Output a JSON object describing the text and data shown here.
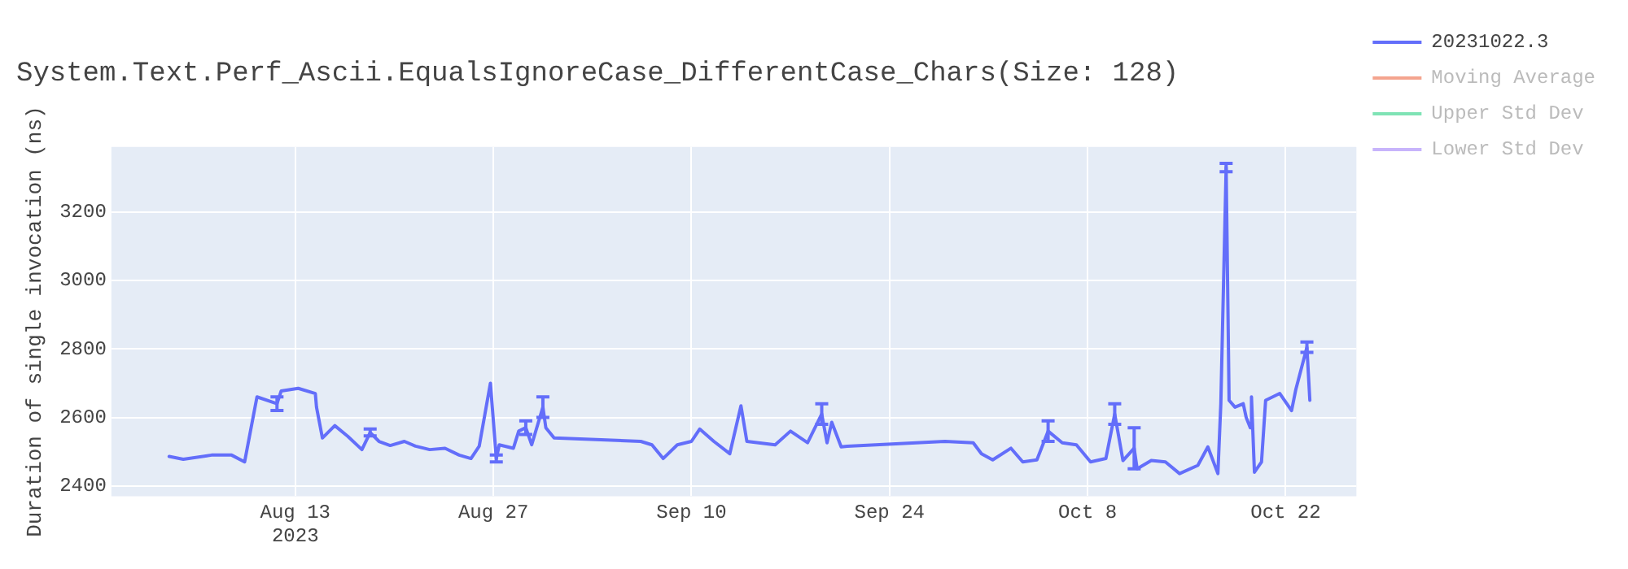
{
  "chart_data": {
    "type": "line",
    "title": "System.Text.Perf_Ascii.EqualsIgnoreCase_DifferentCase_Chars(Size: 128)",
    "ylabel": "Duration of single invocation (ns)",
    "xlim": [
      "2023-07-31",
      "2023-10-27"
    ],
    "xticks": [
      {
        "value": "2023-08-13",
        "label": "Aug 13\n2023"
      },
      {
        "value": "2023-08-27",
        "label": "Aug 27"
      },
      {
        "value": "2023-09-10",
        "label": "Sep 10"
      },
      {
        "value": "2023-09-24",
        "label": "Sep 24"
      },
      {
        "value": "2023-10-08",
        "label": "Oct 8"
      },
      {
        "value": "2023-10-22",
        "label": "Oct 22"
      }
    ],
    "ylim": [
      2370,
      3390
    ],
    "yticks": [
      2400,
      2600,
      2800,
      3000,
      3200
    ],
    "grid": true,
    "legend": "right",
    "marker": "none",
    "line_style": "solid",
    "x": [
      "2023-08-04T02:00",
      "2023-08-05T02:00",
      "2023-08-07T02:00",
      "2023-08-08T12:00",
      "2023-08-09T10:00",
      "2023-08-10T07:00",
      "2023-08-11T17:00",
      "2023-08-12T00:00",
      "2023-08-13T05:00",
      "2023-08-14T10:00",
      "2023-08-14T12:00",
      "2023-08-14T22:00",
      "2023-08-15T19:00",
      "2023-08-16T17:00",
      "2023-08-17T17:00",
      "2023-08-18T07:00",
      "2023-08-18T22:00",
      "2023-08-19T17:00",
      "2023-08-20T17:00",
      "2023-08-21T12:00",
      "2023-08-22T12:00",
      "2023-08-23T14:00",
      "2023-08-24T14:00",
      "2023-08-25T10:00",
      "2023-08-26T00:00",
      "2023-08-26T19:00",
      "2023-08-27T05:00",
      "2023-08-27T10:00",
      "2023-08-28T10:00",
      "2023-08-28T19:00",
      "2023-08-29T07:00",
      "2023-08-29T17:00",
      "2023-08-30T12:00",
      "2023-08-30T17:00",
      "2023-08-31T07:00",
      "2023-09-06T10:00",
      "2023-09-07T05:00",
      "2023-09-08T00:00",
      "2023-09-09T00:00",
      "2023-09-10T00:00",
      "2023-09-10T14:00",
      "2023-09-11T14:00",
      "2023-09-12T17:00",
      "2023-09-13T12:00",
      "2023-09-13T22:00",
      "2023-09-15T22:00",
      "2023-09-17T00:00",
      "2023-09-18T05:00",
      "2023-09-19T05:00",
      "2023-09-19T14:00",
      "2023-09-19T22:00",
      "2023-09-20T14:00",
      "2023-09-21T00:00",
      "2023-09-27T22:00",
      "2023-09-29T22:00",
      "2023-09-30T12:00",
      "2023-10-01T07:00",
      "2023-10-02T14:00",
      "2023-10-03T10:00",
      "2023-10-04T10:00",
      "2023-10-05T05:00",
      "2023-10-06T05:00",
      "2023-10-07T05:00",
      "2023-10-08T05:00",
      "2023-10-09T07:00",
      "2023-10-09T22:00",
      "2023-10-10T12:00",
      "2023-10-11T07:00",
      "2023-10-11T12:00",
      "2023-10-12T12:00",
      "2023-10-13T12:00",
      "2023-10-14T12:00",
      "2023-10-15T19:00",
      "2023-10-16T12:00",
      "2023-10-17T05:00",
      "2023-10-17T10:00",
      "2023-10-17T19:00",
      "2023-10-18T00:00",
      "2023-10-18T10:00",
      "2023-10-19T00:00",
      "2023-10-19T05:00",
      "2023-10-19T12:00",
      "2023-10-19T14:00",
      "2023-10-19T19:00",
      "2023-10-20T07:00",
      "2023-10-20T14:00",
      "2023-10-21T14:00",
      "2023-10-22T10:00",
      "2023-10-22T17:00",
      "2023-10-23T12:00",
      "2023-10-23T17:00"
    ],
    "series": [
      {
        "name": "20231022.3",
        "color": "#636efa",
        "values": [
          2486,
          2478,
          2490,
          2490,
          2470,
          2660,
          2640,
          2677,
          2685,
          2670,
          2630,
          2540,
          2576,
          2545,
          2506,
          2556,
          2530,
          2518,
          2530,
          2516,
          2506,
          2510,
          2490,
          2480,
          2516,
          2700,
          2480,
          2520,
          2510,
          2560,
          2570,
          2520,
          2630,
          2570,
          2540,
          2530,
          2520,
          2480,
          2520,
          2530,
          2566,
          2530,
          2494,
          2634,
          2530,
          2520,
          2560,
          2526,
          2610,
          2526,
          2586,
          2514,
          2516,
          2530,
          2526,
          2494,
          2476,
          2510,
          2470,
          2476,
          2560,
          2526,
          2520,
          2470,
          2480,
          2610,
          2474,
          2510,
          2450,
          2474,
          2470,
          2436,
          2460,
          2514,
          2436,
          2640,
          3330,
          2650,
          2630,
          2640,
          2600,
          2570,
          2660,
          2440,
          2470,
          2650,
          2670,
          2620,
          2680,
          2805,
          2650
        ],
        "errors": [
          null,
          null,
          null,
          null,
          null,
          null,
          20,
          null,
          null,
          null,
          null,
          null,
          null,
          null,
          null,
          10,
          null,
          null,
          null,
          null,
          null,
          null,
          null,
          null,
          null,
          null,
          10,
          null,
          null,
          null,
          20,
          null,
          30,
          null,
          null,
          null,
          null,
          null,
          null,
          null,
          null,
          null,
          null,
          null,
          null,
          null,
          null,
          null,
          30,
          null,
          null,
          null,
          null,
          null,
          null,
          null,
          null,
          null,
          null,
          null,
          30,
          null,
          null,
          null,
          null,
          30,
          null,
          60,
          null,
          null,
          null,
          null,
          null,
          null,
          null,
          null,
          12,
          null,
          null,
          null,
          null,
          null,
          null,
          null,
          null,
          null,
          null,
          null,
          null,
          15,
          null
        ]
      },
      {
        "name": "Moving Average",
        "color": "#f4a48e",
        "values": [
          null,
          null,
          null,
          null,
          null,
          null,
          null,
          null,
          null,
          null,
          null,
          null,
          null,
          null,
          null,
          null,
          null,
          null,
          null,
          null,
          null,
          null,
          null,
          null,
          null,
          null,
          null,
          null,
          null,
          null,
          null,
          null,
          null,
          null,
          null,
          null,
          null,
          null,
          null,
          null,
          null,
          null,
          null,
          null,
          null,
          null,
          null,
          null,
          null,
          null,
          null,
          null,
          null,
          null,
          null,
          null,
          null,
          null,
          null,
          null,
          null,
          null,
          null,
          null,
          null,
          null,
          null,
          null,
          null,
          null,
          null,
          null,
          null,
          null,
          null,
          null,
          null,
          null,
          null,
          null,
          null,
          null,
          null,
          null,
          null,
          null,
          null,
          null,
          null,
          null,
          null
        ]
      },
      {
        "name": "Upper Std Dev",
        "color": "#7fe3b5",
        "values": [
          null,
          null,
          null,
          null,
          null,
          null,
          null,
          null,
          null,
          null,
          null,
          null,
          null,
          null,
          null,
          null,
          null,
          null,
          null,
          null,
          null,
          null,
          null,
          null,
          null,
          null,
          null,
          null,
          null,
          null,
          null,
          null,
          null,
          null,
          null,
          null,
          null,
          null,
          null,
          null,
          null,
          null,
          null,
          null,
          null,
          null,
          null,
          null,
          null,
          null,
          null,
          null,
          null,
          null,
          null,
          null,
          null,
          null,
          null,
          null,
          null,
          null,
          null,
          null,
          null,
          null,
          null,
          null,
          null,
          null,
          null,
          null,
          null,
          null,
          null,
          null,
          null,
          null,
          null,
          null,
          null,
          null,
          null,
          null,
          null,
          null,
          null,
          null,
          null,
          null,
          null
        ]
      },
      {
        "name": "Lower Std Dev",
        "color": "#c7b4fb",
        "values": [
          null,
          null,
          null,
          null,
          null,
          null,
          null,
          null,
          null,
          null,
          null,
          null,
          null,
          null,
          null,
          null,
          null,
          null,
          null,
          null,
          null,
          null,
          null,
          null,
          null,
          null,
          null,
          null,
          null,
          null,
          null,
          null,
          null,
          null,
          null,
          null,
          null,
          null,
          null,
          null,
          null,
          null,
          null,
          null,
          null,
          null,
          null,
          null,
          null,
          null,
          null,
          null,
          null,
          null,
          null,
          null,
          null,
          null,
          null,
          null,
          null,
          null,
          null,
          null,
          null,
          null,
          null,
          null,
          null,
          null,
          null,
          null,
          null,
          null,
          null,
          null,
          null,
          null,
          null,
          null,
          null,
          null,
          null,
          null,
          null,
          null,
          null,
          null,
          null,
          null,
          null
        ]
      }
    ]
  }
}
